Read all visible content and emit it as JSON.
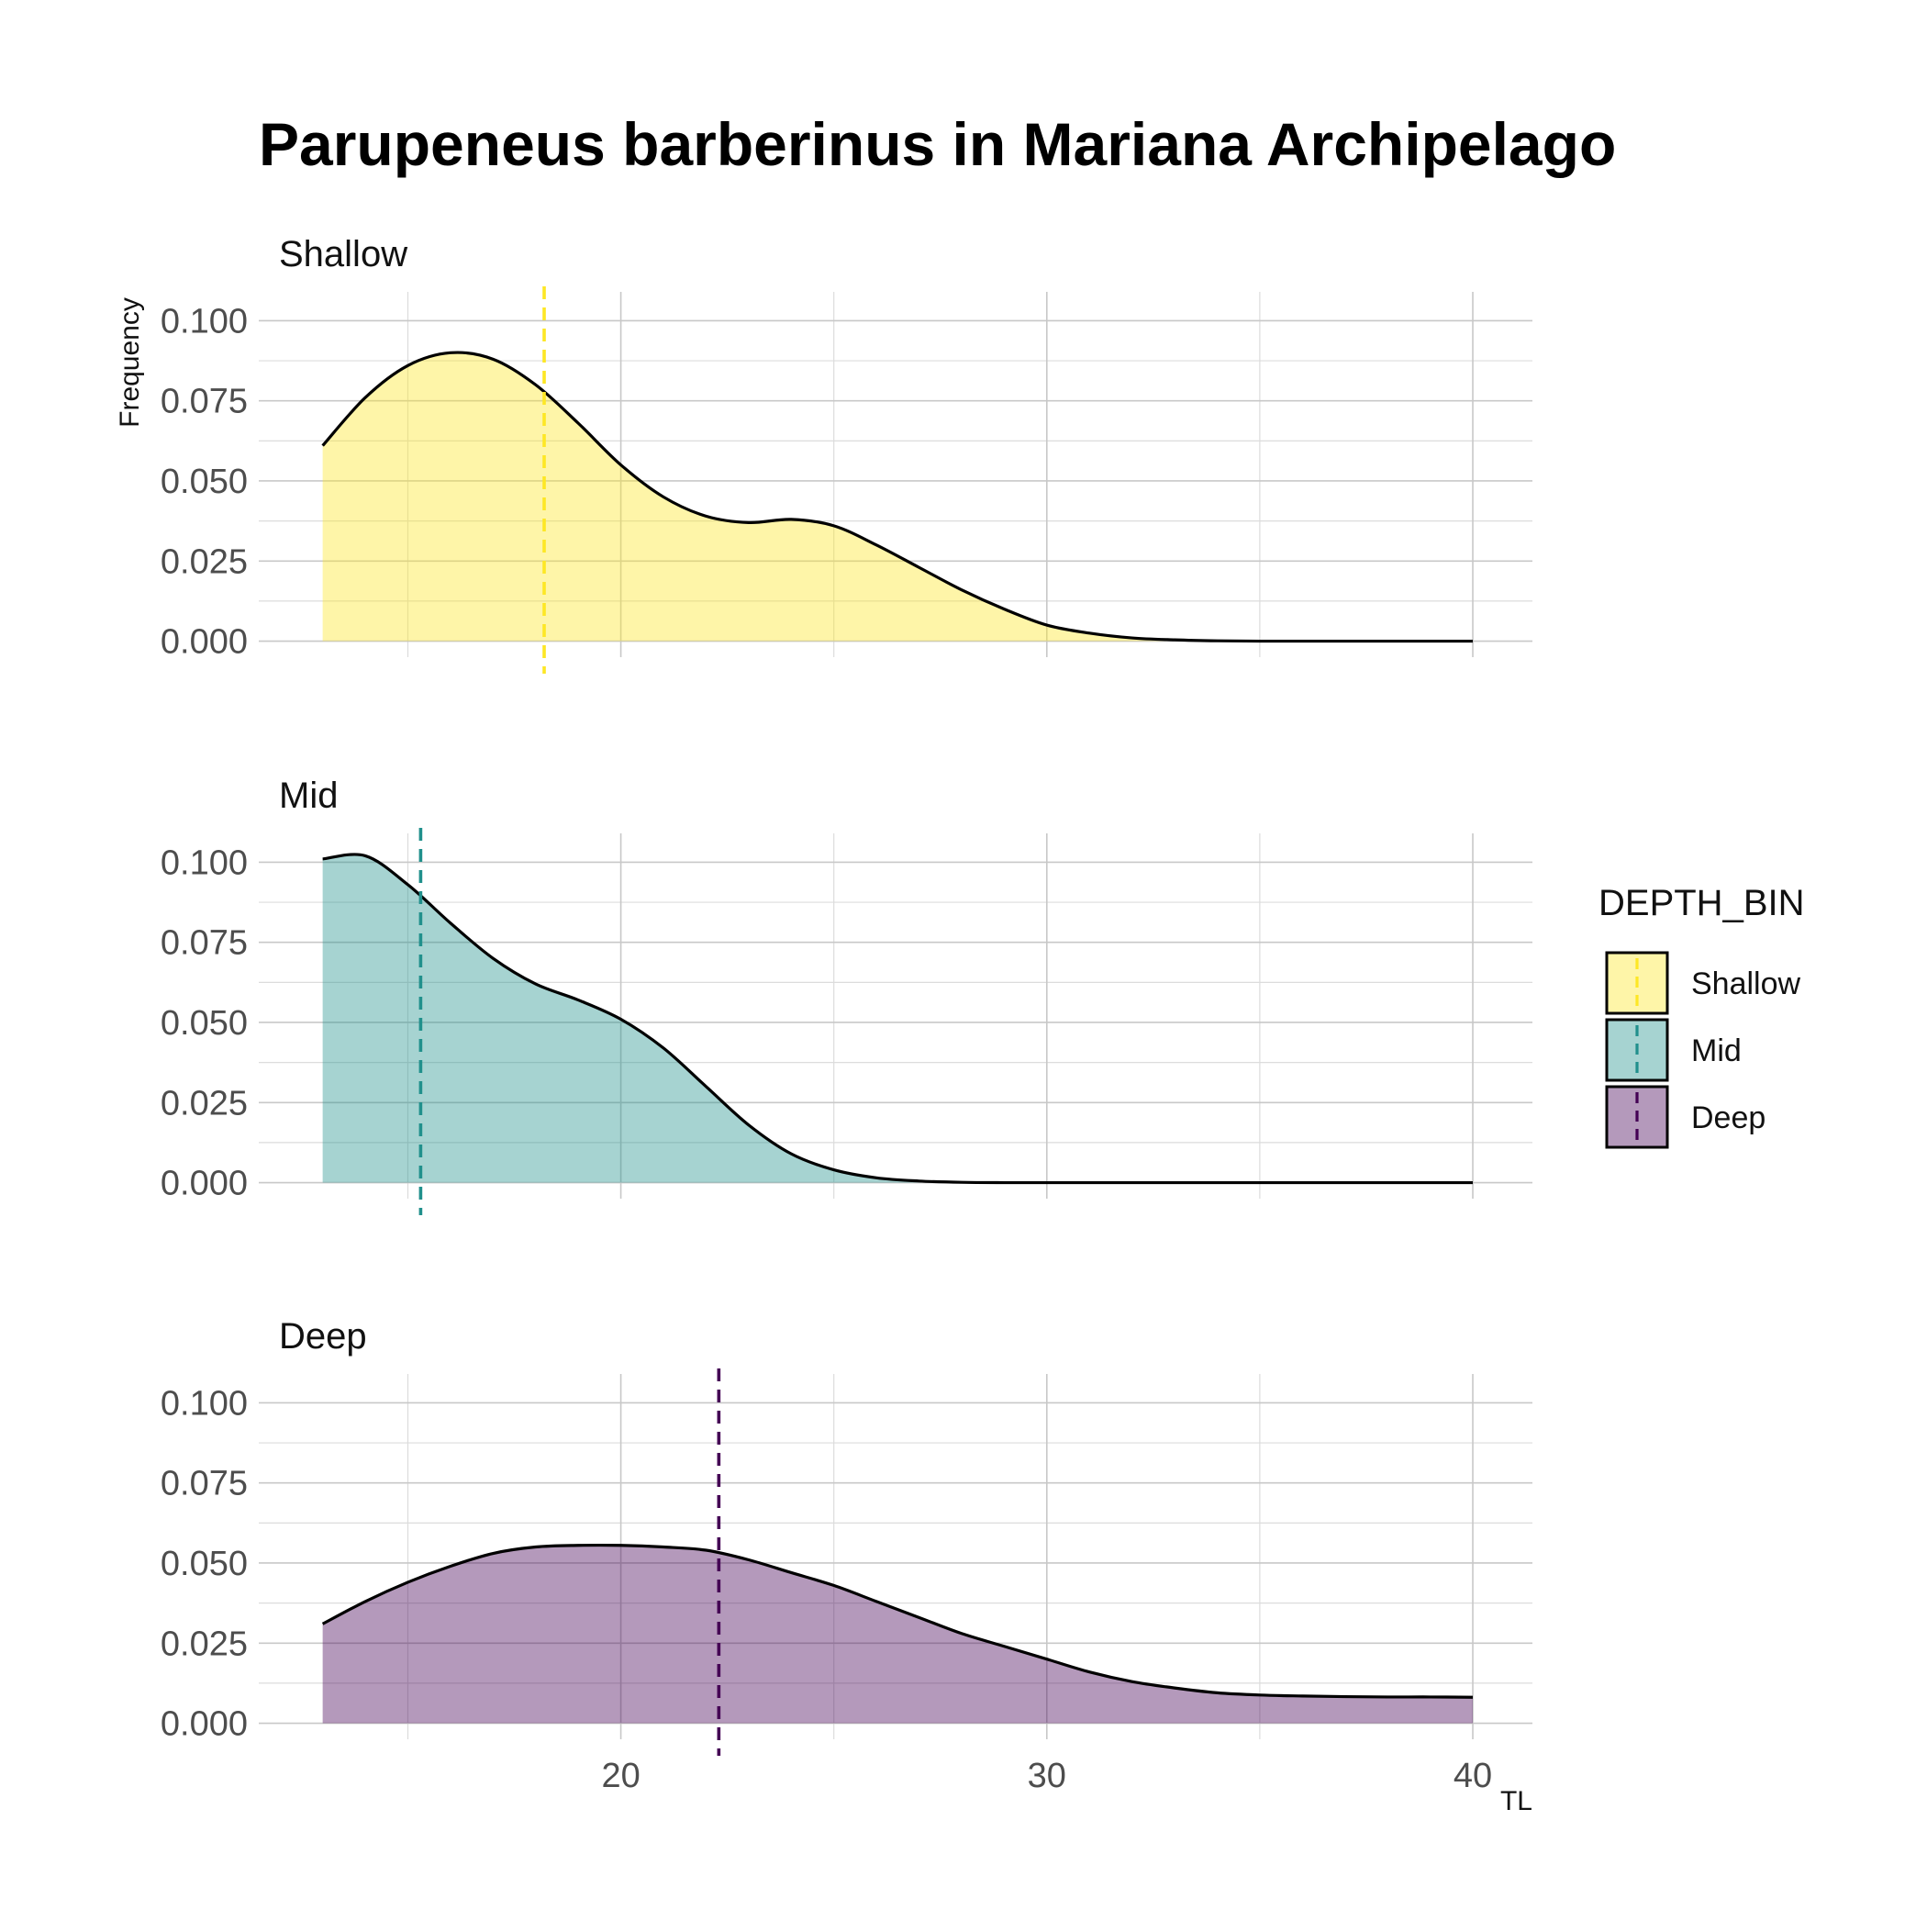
{
  "chart_data": {
    "type": "area",
    "title": "Parupeneus barberinus in Mariana Archipelago",
    "xlabel": "TL",
    "ylabel": "Frequency",
    "xlim": [
      11.5,
      41.4
    ],
    "ylim": [
      -0.005,
      0.109
    ],
    "x_ticks": [
      20,
      30,
      40
    ],
    "y_ticks": [
      0.0,
      0.025,
      0.05,
      0.075,
      0.1
    ],
    "y_tick_labels": [
      "0.000",
      "0.025",
      "0.050",
      "0.075",
      "0.100"
    ],
    "grid": true,
    "legend": {
      "title": "DEPTH_BIN",
      "position": "right",
      "entries": [
        "Shallow",
        "Mid",
        "Deep"
      ]
    },
    "panels": [
      {
        "name": "Shallow",
        "color": "#FDE725",
        "mean_line": 18.2,
        "x": [
          13,
          14,
          15,
          16,
          17,
          18,
          19,
          20,
          21,
          22,
          23,
          24,
          25,
          26,
          27,
          28,
          29,
          30,
          31,
          32,
          33,
          34,
          35,
          36,
          37,
          38,
          39,
          40
        ],
        "values": [
          0.061,
          0.076,
          0.086,
          0.09,
          0.088,
          0.08,
          0.068,
          0.055,
          0.045,
          0.039,
          0.037,
          0.038,
          0.036,
          0.03,
          0.023,
          0.016,
          0.01,
          0.005,
          0.0025,
          0.001,
          0.0004,
          0.0001,
          0.0,
          0.0,
          0.0,
          0.0,
          0.0,
          0.0
        ]
      },
      {
        "name": "Mid",
        "color": "#21908C",
        "mean_line": 15.3,
        "x": [
          13,
          14,
          15,
          16,
          17,
          18,
          19,
          20,
          21,
          22,
          23,
          24,
          25,
          26,
          27,
          28,
          29,
          30,
          31,
          32,
          33,
          34,
          35,
          36,
          37,
          38,
          39,
          40
        ],
        "values": [
          0.101,
          0.102,
          0.093,
          0.081,
          0.07,
          0.062,
          0.057,
          0.051,
          0.042,
          0.03,
          0.018,
          0.009,
          0.004,
          0.0015,
          0.0005,
          0.0001,
          0.0,
          0.0,
          0.0,
          0.0,
          0.0,
          0.0,
          0.0,
          0.0,
          0.0,
          0.0,
          0.0,
          0.0
        ]
      },
      {
        "name": "Deep",
        "color": "#440154",
        "mean_line": 22.3,
        "x": [
          13,
          14,
          15,
          16,
          17,
          18,
          19,
          20,
          21,
          22,
          23,
          24,
          25,
          26,
          27,
          28,
          29,
          30,
          31,
          32,
          33,
          34,
          35,
          36,
          37,
          38,
          39,
          40
        ],
        "values": [
          0.031,
          0.038,
          0.044,
          0.049,
          0.053,
          0.055,
          0.0555,
          0.0555,
          0.055,
          0.054,
          0.051,
          0.047,
          0.043,
          0.038,
          0.033,
          0.028,
          0.024,
          0.02,
          0.016,
          0.013,
          0.011,
          0.0095,
          0.0088,
          0.0085,
          0.0083,
          0.0082,
          0.0082,
          0.0081
        ]
      }
    ]
  }
}
